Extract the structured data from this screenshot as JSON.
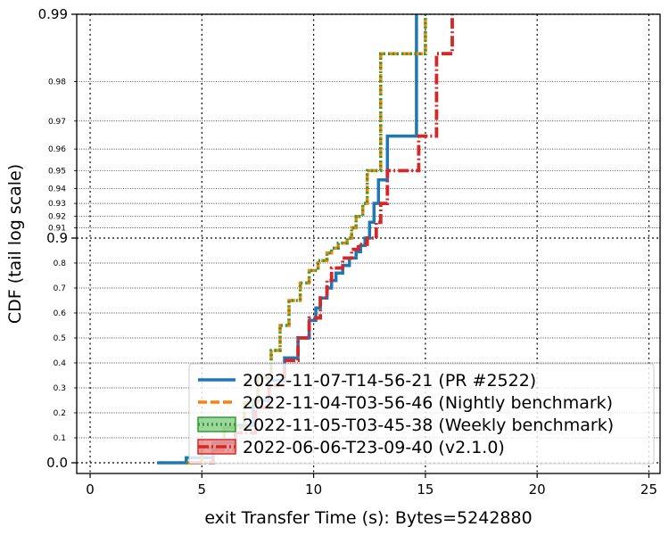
{
  "chart_data": {
    "type": "line",
    "title": "",
    "xlabel": "exit Transfer Time (s): Bytes=5242880",
    "ylabel": "CDF (tail log scale)",
    "xlim": [
      -0.6,
      25.5
    ],
    "xticks": [
      0,
      5,
      10,
      15,
      20,
      25
    ],
    "yscale": "tail-log",
    "ylim": [
      0.0,
      0.99
    ],
    "yticks_major": [
      "0.0",
      "0.9",
      "0.99"
    ],
    "yticks_minor": [
      "0.1",
      "0.2",
      "0.3",
      "0.4",
      "0.5",
      "0.6",
      "0.7",
      "0.8",
      "0.91",
      "0.92",
      "0.93",
      "0.94",
      "0.95",
      "0.96",
      "0.97",
      "0.98"
    ],
    "grid": true,
    "legend_position": "lower-right",
    "series": [
      {
        "name": "2022-11-07-T14-56-21 (PR #2522)",
        "color": "#1f77b4",
        "style": "solid",
        "points": [
          [
            3.0,
            0.0
          ],
          [
            4.3,
            0.02
          ],
          [
            5.5,
            0.08
          ],
          [
            6.5,
            0.15
          ],
          [
            7.3,
            0.25
          ],
          [
            8.0,
            0.33
          ],
          [
            8.7,
            0.42
          ],
          [
            9.3,
            0.5
          ],
          [
            9.8,
            0.57
          ],
          [
            10.1,
            0.62
          ],
          [
            10.3,
            0.66
          ],
          [
            10.6,
            0.7
          ],
          [
            10.8,
            0.73
          ],
          [
            11.0,
            0.76
          ],
          [
            11.3,
            0.79
          ],
          [
            11.6,
            0.82
          ],
          [
            11.9,
            0.845
          ],
          [
            12.1,
            0.87
          ],
          [
            12.3,
            0.9
          ],
          [
            12.5,
            0.915
          ],
          [
            12.7,
            0.93
          ],
          [
            12.9,
            0.945
          ],
          [
            13.3,
            0.965
          ],
          [
            14.6,
            0.99
          ]
        ]
      },
      {
        "name": "2022-11-04-T03-56-46 (Nightly benchmark)",
        "color": "#ff7f0e",
        "style": "dashed",
        "points": [
          [
            4.3,
            0.0
          ],
          [
            5.0,
            0.06
          ],
          [
            6.0,
            0.14
          ],
          [
            6.9,
            0.24
          ],
          [
            7.5,
            0.34
          ],
          [
            8.1,
            0.45
          ],
          [
            8.5,
            0.55
          ],
          [
            8.9,
            0.65
          ],
          [
            9.4,
            0.72
          ],
          [
            9.8,
            0.77
          ],
          [
            10.2,
            0.81
          ],
          [
            10.6,
            0.84
          ],
          [
            10.8,
            0.86
          ],
          [
            11.1,
            0.88
          ],
          [
            11.5,
            0.9
          ],
          [
            11.7,
            0.91
          ],
          [
            11.9,
            0.92
          ],
          [
            12.2,
            0.93
          ],
          [
            12.4,
            0.95
          ],
          [
            13.0,
            0.985
          ],
          [
            15.0,
            0.99
          ]
        ]
      },
      {
        "name": "2022-11-05-T03-45-38 (Weekly benchmark)",
        "color": "#2ca02c",
        "style": "dotted",
        "points": [
          [
            4.3,
            0.0
          ],
          [
            5.0,
            0.06
          ],
          [
            6.0,
            0.14
          ],
          [
            6.9,
            0.24
          ],
          [
            7.5,
            0.34
          ],
          [
            8.1,
            0.45
          ],
          [
            8.5,
            0.55
          ],
          [
            8.9,
            0.65
          ],
          [
            9.4,
            0.72
          ],
          [
            9.8,
            0.77
          ],
          [
            10.2,
            0.81
          ],
          [
            10.6,
            0.84
          ],
          [
            10.8,
            0.86
          ],
          [
            11.1,
            0.88
          ],
          [
            11.5,
            0.9
          ],
          [
            11.7,
            0.91
          ],
          [
            11.9,
            0.92
          ],
          [
            12.2,
            0.93
          ],
          [
            12.4,
            0.95
          ],
          [
            13.0,
            0.985
          ],
          [
            15.0,
            0.99
          ]
        ]
      },
      {
        "name": "2022-06-06-T23-09-40 (v2.1.0)",
        "color": "#d62728",
        "style": "dashdot",
        "points": [
          [
            4.5,
            0.0
          ],
          [
            5.5,
            0.05
          ],
          [
            6.5,
            0.12
          ],
          [
            7.4,
            0.22
          ],
          [
            8.0,
            0.31
          ],
          [
            8.7,
            0.41
          ],
          [
            9.3,
            0.5
          ],
          [
            9.8,
            0.58
          ],
          [
            10.3,
            0.66
          ],
          [
            10.6,
            0.73
          ],
          [
            10.8,
            0.78
          ],
          [
            11.3,
            0.82
          ],
          [
            11.7,
            0.855
          ],
          [
            12.0,
            0.875
          ],
          [
            12.4,
            0.9
          ],
          [
            12.8,
            0.915
          ],
          [
            13.0,
            0.93
          ],
          [
            13.3,
            0.95
          ],
          [
            14.7,
            0.965
          ],
          [
            15.5,
            0.985
          ],
          [
            16.2,
            0.99
          ]
        ]
      }
    ]
  }
}
